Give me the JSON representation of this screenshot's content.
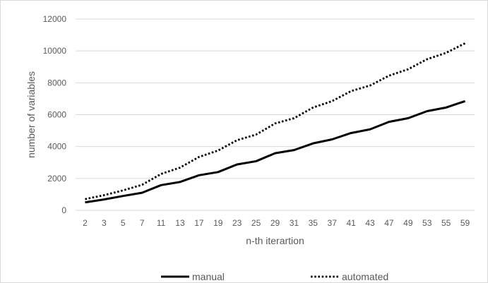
{
  "chart_data": {
    "type": "line",
    "title": "",
    "xlabel": "n-th iterartion",
    "ylabel": "number of variables",
    "categories": [
      "2",
      "3",
      "5",
      "7",
      "11",
      "13",
      "17",
      "19",
      "23",
      "25",
      "29",
      "31",
      "35",
      "37",
      "41",
      "43",
      "47",
      "49",
      "53",
      "55",
      "59"
    ],
    "ylim": [
      0,
      12000
    ],
    "yticks": [
      "0",
      "2000",
      "4000",
      "6000",
      "8000",
      "10000",
      "12000"
    ],
    "grid": true,
    "legend_position": "bottom",
    "series": [
      {
        "name": "manual",
        "style": "solid",
        "color": "#000000",
        "values": [
          500,
          680,
          900,
          1100,
          1580,
          1780,
          2200,
          2400,
          2880,
          3080,
          3580,
          3780,
          4200,
          4450,
          4850,
          5080,
          5550,
          5780,
          6220,
          6450,
          6850
        ]
      },
      {
        "name": "automated",
        "style": "dotted",
        "color": "#000000",
        "values": [
          700,
          950,
          1250,
          1600,
          2280,
          2680,
          3350,
          3750,
          4400,
          4750,
          5450,
          5780,
          6450,
          6850,
          7480,
          7830,
          8450,
          8850,
          9480,
          9880,
          10480
        ]
      }
    ]
  }
}
